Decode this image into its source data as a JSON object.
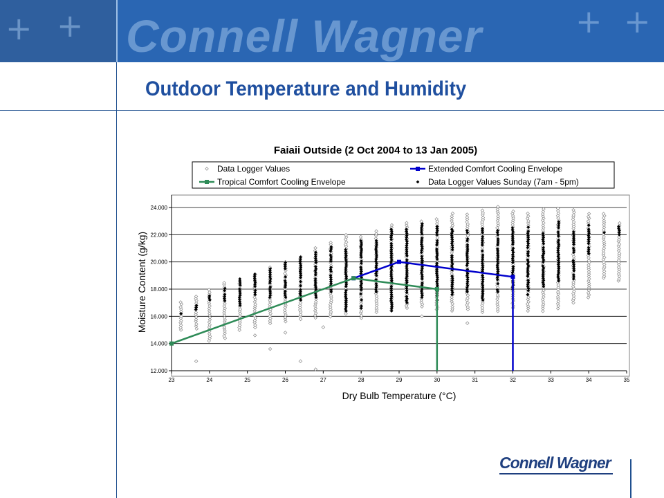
{
  "header": {
    "banner_text": "Connell Wagner",
    "slide_title": "Outdoor Temperature and Humidity"
  },
  "footer": {
    "logo_text": "Connell Wagner"
  },
  "colors": {
    "title_blue": "#1f4f9f",
    "extended_envelope": "#0000cc",
    "tropical_envelope": "#2e8b57",
    "grid": "#000000"
  },
  "chart_data": {
    "type": "scatter",
    "title": "Faiaii Outside  (2 Oct 2004 to 13 Jan 2005)",
    "xlabel": "Dry Bulb Temperature (°C)",
    "ylabel": "Moisture Content (g/kg)",
    "xlim": [
      23,
      35
    ],
    "ylim": [
      12.0,
      24.0
    ],
    "x_ticks": [
      "23",
      "24",
      "25",
      "26",
      "27",
      "28",
      "29",
      "30",
      "31",
      "32",
      "33",
      "34",
      "35"
    ],
    "y_ticks": [
      "12.000",
      "14.000",
      "16.000",
      "18.000",
      "20.000",
      "22.000",
      "24.000"
    ],
    "grid": "horizontal",
    "legend_position": "top",
    "series": [
      {
        "name": "Data Logger Values",
        "marker": "open-diamond",
        "columns": [
          {
            "x": 23.25,
            "ymin": 15.0,
            "ymax": 17.2
          },
          {
            "x": 23.65,
            "ymin": 15.1,
            "ymax": 17.5
          },
          {
            "x": 24.0,
            "ymin": 14.2,
            "ymax": 18.0
          },
          {
            "x": 24.4,
            "ymin": 14.4,
            "ymax": 18.5
          },
          {
            "x": 24.8,
            "ymin": 15.0,
            "ymax": 18.7
          },
          {
            "x": 25.2,
            "ymin": 15.2,
            "ymax": 19.2
          },
          {
            "x": 25.6,
            "ymin": 15.5,
            "ymax": 19.6
          },
          {
            "x": 26.0,
            "ymin": 15.6,
            "ymax": 20.1
          },
          {
            "x": 26.4,
            "ymin": 15.8,
            "ymax": 20.5
          },
          {
            "x": 26.8,
            "ymin": 15.9,
            "ymax": 21.0
          },
          {
            "x": 27.2,
            "ymin": 16.0,
            "ymax": 21.6
          },
          {
            "x": 27.6,
            "ymin": 16.2,
            "ymax": 22.0
          },
          {
            "x": 28.0,
            "ymin": 15.9,
            "ymax": 22.0
          },
          {
            "x": 28.4,
            "ymin": 16.3,
            "ymax": 22.4
          },
          {
            "x": 28.8,
            "ymin": 16.4,
            "ymax": 22.7
          },
          {
            "x": 29.2,
            "ymin": 16.6,
            "ymax": 23.0
          },
          {
            "x": 29.6,
            "ymin": 16.7,
            "ymax": 23.1
          },
          {
            "x": 30.0,
            "ymin": 16.5,
            "ymax": 23.2
          },
          {
            "x": 30.4,
            "ymin": 16.4,
            "ymax": 23.6
          },
          {
            "x": 30.8,
            "ymin": 16.5,
            "ymax": 23.5
          },
          {
            "x": 31.2,
            "ymin": 16.3,
            "ymax": 23.8
          },
          {
            "x": 31.6,
            "ymin": 16.4,
            "ymax": 24.2
          },
          {
            "x": 32.0,
            "ymin": 16.6,
            "ymax": 23.8
          },
          {
            "x": 32.4,
            "ymin": 16.4,
            "ymax": 23.6
          },
          {
            "x": 32.8,
            "ymin": 16.4,
            "ymax": 24.0
          },
          {
            "x": 33.2,
            "ymin": 16.6,
            "ymax": 24.0
          },
          {
            "x": 33.6,
            "ymin": 17.0,
            "ymax": 23.8
          },
          {
            "x": 34.0,
            "ymin": 17.4,
            "ymax": 23.6
          },
          {
            "x": 34.4,
            "ymin": 18.8,
            "ymax": 23.6
          },
          {
            "x": 34.8,
            "ymin": 18.6,
            "ymax": 23.0
          }
        ],
        "outliers": [
          {
            "x": 23.65,
            "y": 12.7
          },
          {
            "x": 25.2,
            "y": 14.6
          },
          {
            "x": 25.6,
            "y": 13.6
          },
          {
            "x": 26.0,
            "y": 14.8
          },
          {
            "x": 26.4,
            "y": 12.7
          },
          {
            "x": 26.8,
            "y": 12.1
          },
          {
            "x": 27.0,
            "y": 15.2
          },
          {
            "x": 29.6,
            "y": 16.0
          },
          {
            "x": 30.8,
            "y": 15.5
          }
        ]
      },
      {
        "name": "Data Logger Values Sunday (7am - 5pm)",
        "marker": "filled-diamond",
        "columns": [
          {
            "x": 23.25,
            "ymin": 16.2,
            "ymax": 16.2
          },
          {
            "x": 23.65,
            "ymin": 16.5,
            "ymax": 16.8
          },
          {
            "x": 24.0,
            "ymin": 17.2,
            "ymax": 17.6
          },
          {
            "x": 24.4,
            "ymin": 17.0,
            "ymax": 18.2
          },
          {
            "x": 24.8,
            "ymin": 16.8,
            "ymax": 18.8
          },
          {
            "x": 25.2,
            "ymin": 17.6,
            "ymax": 19.2
          },
          {
            "x": 25.6,
            "ymin": 17.4,
            "ymax": 19.8
          },
          {
            "x": 26.0,
            "ymin": 17.4,
            "ymax": 20.0
          },
          {
            "x": 26.4,
            "ymin": 17.2,
            "ymax": 20.4
          },
          {
            "x": 26.8,
            "ymin": 17.4,
            "ymax": 20.8
          },
          {
            "x": 27.2,
            "ymin": 17.8,
            "ymax": 21.2
          },
          {
            "x": 27.6,
            "ymin": 16.4,
            "ymax": 21.0
          },
          {
            "x": 28.0,
            "ymin": 16.6,
            "ymax": 21.6
          },
          {
            "x": 28.4,
            "ymin": 17.8,
            "ymax": 21.6
          },
          {
            "x": 28.8,
            "ymin": 16.4,
            "ymax": 22.4
          },
          {
            "x": 29.2,
            "ymin": 17.0,
            "ymax": 22.4
          },
          {
            "x": 29.6,
            "ymin": 17.4,
            "ymax": 22.8
          },
          {
            "x": 30.0,
            "ymin": 17.2,
            "ymax": 22.6
          },
          {
            "x": 30.4,
            "ymin": 17.6,
            "ymax": 22.4
          },
          {
            "x": 30.8,
            "ymin": 17.8,
            "ymax": 22.6
          },
          {
            "x": 31.2,
            "ymin": 17.2,
            "ymax": 22.6
          },
          {
            "x": 31.6,
            "ymin": 17.8,
            "ymax": 22.4
          },
          {
            "x": 32.0,
            "ymin": 18.0,
            "ymax": 22.6
          },
          {
            "x": 32.4,
            "ymin": 17.6,
            "ymax": 22.6
          },
          {
            "x": 32.8,
            "ymin": 18.2,
            "ymax": 22.2
          },
          {
            "x": 33.2,
            "ymin": 18.6,
            "ymax": 23.0
          },
          {
            "x": 33.6,
            "ymin": 18.6,
            "ymax": 22.2
          },
          {
            "x": 34.0,
            "ymin": 20.6,
            "ymax": 22.8
          },
          {
            "x": 34.4,
            "ymin": 22.0,
            "ymax": 22.4
          },
          {
            "x": 34.8,
            "ymin": 22.0,
            "ymax": 22.6
          }
        ]
      },
      {
        "name": "Extended Comfort Cooling Envelope",
        "marker": "line-square",
        "points": [
          {
            "x": 27.8,
            "y": 18.8
          },
          {
            "x": 29.0,
            "y": 20.0
          },
          {
            "x": 32.0,
            "y": 18.9
          },
          {
            "x": 32.0,
            "y": 12.0
          }
        ]
      },
      {
        "name": "Tropical Comfort Cooling Envelope",
        "marker": "line-square",
        "points": [
          {
            "x": 23.0,
            "y": 14.0
          },
          {
            "x": 27.8,
            "y": 18.8
          },
          {
            "x": 30.0,
            "y": 18.0
          },
          {
            "x": 30.0,
            "y": 12.0
          }
        ]
      }
    ]
  }
}
